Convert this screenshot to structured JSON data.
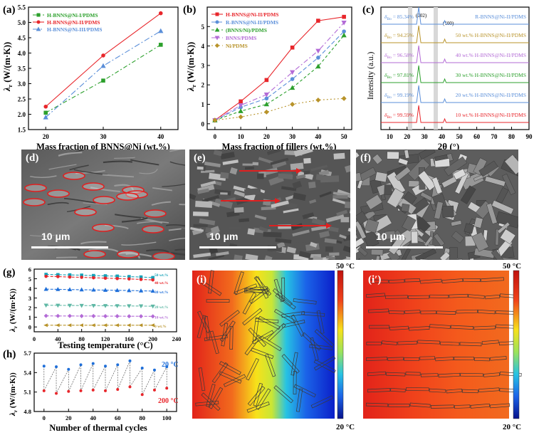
{
  "panels": {
    "a": {
      "letter": "(a)",
      "chart_data": {
        "type": "line",
        "xlabel": "Mass fraction of BNNS@Ni (wt.%)",
        "ylabel": "λ",
        "ylabel_sub": "r",
        "ylabel_unit": " (W/(m·K))",
        "categories": [
          20,
          30,
          40
        ],
        "xlim": [
          17,
          43
        ],
        "ylim": [
          1.5,
          5.5
        ],
        "xticks": [
          20,
          30,
          40
        ],
        "yticks": [
          1.5,
          2.0,
          2.5,
          3.0,
          3.5,
          4.0,
          4.5,
          5.0,
          5.5
        ],
        "series": [
          {
            "name": "H-BNNS@Ni-I/PDMS",
            "color": "#2ca02c",
            "dash": "6,3,2,3",
            "marker": "square",
            "values": [
              2.05,
              3.1,
              4.27
            ]
          },
          {
            "name": "H-BNNS@Ni-II/PDMS",
            "color": "#e8262b",
            "dash": "",
            "marker": "circle",
            "values": [
              2.25,
              3.92,
              5.3
            ]
          },
          {
            "name": "H-BNNS@Ni-III/PDMS",
            "color": "#5b8fd9",
            "dash": "8,3,2,3",
            "marker": "triangle",
            "values": [
              1.9,
              3.58,
              4.72
            ]
          }
        ]
      }
    },
    "b": {
      "letter": "(b)",
      "chart_data": {
        "type": "line",
        "xlabel": "Mass fraction of fillers (wt.%)",
        "ylabel": "λ",
        "ylabel_sub": "r",
        "ylabel_unit": " (W/(m·K))",
        "categories": [
          0,
          10,
          20,
          30,
          40,
          50
        ],
        "xlim": [
          -3,
          53
        ],
        "ylim": [
          -0.3,
          6
        ],
        "xticks": [
          0,
          10,
          20,
          30,
          40,
          50
        ],
        "yticks": [
          0,
          1,
          2,
          3,
          4,
          5
        ],
        "series": [
          {
            "name": "H-BNNS@Ni-II/PDMS",
            "color": "#e8262b",
            "dash": "",
            "marker": "square",
            "values": [
              0.18,
              1.15,
              2.25,
              3.92,
              5.3,
              5.5
            ]
          },
          {
            "name": "R-BNNS@Ni-II/PDMS",
            "color": "#5b8fd9",
            "dash": "6,3",
            "marker": "circle",
            "values": [
              0.18,
              0.85,
              1.3,
              2.3,
              3.4,
              4.75
            ]
          },
          {
            "name": "(BNNS/Ni)/PDMS",
            "color": "#2ca02c",
            "dash": "4,3",
            "marker": "triangle",
            "values": [
              0.18,
              0.65,
              1.0,
              1.85,
              2.95,
              4.55
            ]
          },
          {
            "name": "BNNS/PDMS",
            "color": "#b36bd6",
            "dash": "7,3,2,3",
            "marker": "triangle-down",
            "values": [
              0.18,
              0.95,
              1.5,
              2.65,
              3.75,
              5.2
            ]
          },
          {
            "name": "Ni/PDMS",
            "color": "#b8932a",
            "dash": "2,3",
            "marker": "diamond",
            "values": [
              0.18,
              0.35,
              0.6,
              1.0,
              1.22,
              1.3
            ]
          }
        ]
      }
    },
    "c": {
      "letter": "(c)",
      "peaks": [
        "(002)",
        "(100)"
      ],
      "xlabel": "2θ (°)",
      "ylabel": "Intensity (a.u.)",
      "xticks": [
        10,
        20,
        30,
        40,
        50,
        60,
        70,
        80,
        90
      ],
      "traces": [
        {
          "delta": "δ",
          "sub": "Bo",
          "value": "= 85.34%",
          "name": "R-BNNS@Ni-II/PDMS",
          "color": "#5b8fd9"
        },
        {
          "delta": "δ",
          "sub": "Bo",
          "value": "= 94.25%",
          "name": "50 wt.% H-BNNS@Ni-II/PDMS",
          "color": "#b8932a"
        },
        {
          "delta": "δ",
          "sub": "Bo",
          "value": "= 96.58%",
          "name": "40 wt.% H-BNNS@Ni-II/PDMS",
          "color": "#b36bd6"
        },
        {
          "delta": "δ",
          "sub": "Bo",
          "value": "= 97.81%",
          "name": "30 wt.% H-BNNS@Ni-II/PDMS",
          "color": "#2ca02c"
        },
        {
          "delta": "δ",
          "sub": "Bo",
          "value": "= 99.19%",
          "name": "20 wt.% H-BNNS@Ni-II/PDMS",
          "color": "#5b8fd9"
        },
        {
          "delta": "δ",
          "sub": "Bo",
          "value": "= 99.59%",
          "name": "10 wt.% H-BNNS@Ni-II/PDMS",
          "color": "#e8262b"
        }
      ]
    },
    "d": {
      "letter": "(d)",
      "scale": "10 μm"
    },
    "e": {
      "letter": "(e)",
      "scale": "10 μm"
    },
    "f": {
      "letter": "(f)",
      "scale": "10 μm"
    },
    "g": {
      "letter": "(g)",
      "chart_data": {
        "type": "line",
        "xlabel": "Testing temperature (°C)",
        "ylabel": "λ",
        "ylabel_sub": "r",
        "ylabel_unit": " (W/(m·K))",
        "x": [
          20,
          40,
          60,
          80,
          100,
          120,
          140,
          160,
          180,
          200
        ],
        "xlim": [
          0,
          240
        ],
        "ylim": [
          -0.5,
          6
        ],
        "xticks": [
          0,
          40,
          80,
          120,
          160,
          200,
          240
        ],
        "yticks": [
          0,
          1,
          2,
          3,
          4,
          5,
          6
        ],
        "series": [
          {
            "name": "50 wt.%",
            "color": "#17a2b8",
            "marker": "square",
            "values": [
              5.45,
              5.42,
              5.4,
              5.37,
              5.33,
              5.3,
              5.27,
              5.22,
              5.18,
              5.12
            ]
          },
          {
            "name": "40 wt.%",
            "color": "#e8262b",
            "marker": "circle",
            "values": [
              5.25,
              5.22,
              5.18,
              5.15,
              5.1,
              5.06,
              5.02,
              4.98,
              4.93,
              4.88
            ]
          },
          {
            "name": "30 wt.%",
            "color": "#1f6fd9",
            "marker": "triangle",
            "values": [
              3.92,
              3.9,
              3.88,
              3.86,
              3.84,
              3.82,
              3.8,
              3.78,
              3.75,
              3.72
            ]
          },
          {
            "name": "20 wt.%",
            "color": "#5fb8a5",
            "marker": "triangle-down",
            "values": [
              2.25,
              2.24,
              2.23,
              2.22,
              2.21,
              2.2,
              2.19,
              2.18,
              2.17,
              2.15
            ]
          },
          {
            "name": "10 wt.%",
            "color": "#b36bd6",
            "marker": "diamond",
            "values": [
              1.15,
              1.14,
              1.14,
              1.13,
              1.13,
              1.12,
              1.12,
              1.11,
              1.11,
              1.1
            ]
          },
          {
            "name": "0 wt.%",
            "color": "#b8932a",
            "marker": "triangle-left",
            "values": [
              0.18,
              0.18,
              0.18,
              0.18,
              0.18,
              0.18,
              0.18,
              0.18,
              0.18,
              0.18
            ]
          }
        ]
      }
    },
    "h": {
      "letter": "(h)",
      "chart_data": {
        "type": "scatter",
        "xlabel": "Number of thermal cycles",
        "ylabel": "λ",
        "ylabel_sub": "r",
        "ylabel_unit": " (W/(m·K))",
        "x": [
          0,
          10,
          20,
          30,
          40,
          50,
          60,
          70,
          80,
          90,
          100
        ],
        "xlim": [
          -8,
          108
        ],
        "ylim": [
          4.8,
          5.7
        ],
        "xticks": [
          0,
          20,
          40,
          60,
          80,
          100
        ],
        "yticks": [
          4.8,
          5.1,
          5.4,
          5.7
        ],
        "series": [
          {
            "name": "20 °C",
            "color": "#1f6fd9",
            "values": [
              5.5,
              5.49,
              5.45,
              5.52,
              5.54,
              5.5,
              5.52,
              5.58,
              5.47,
              5.44,
              5.49
            ]
          },
          {
            "name": "200 °C",
            "color": "#e8262b",
            "values": [
              5.12,
              5.08,
              5.11,
              5.12,
              5.13,
              5.12,
              5.14,
              5.18,
              5.06,
              5.13,
              5.16
            ]
          }
        ],
        "label_20": "20 °C",
        "label_200": "200 °C"
      }
    },
    "i": {
      "letter": "(i)",
      "max_label": "50 °C",
      "min_label": "20 °C"
    },
    "i2": {
      "letter": "(i′)",
      "max_label": "50 °C",
      "min_label": "20 °C"
    }
  }
}
